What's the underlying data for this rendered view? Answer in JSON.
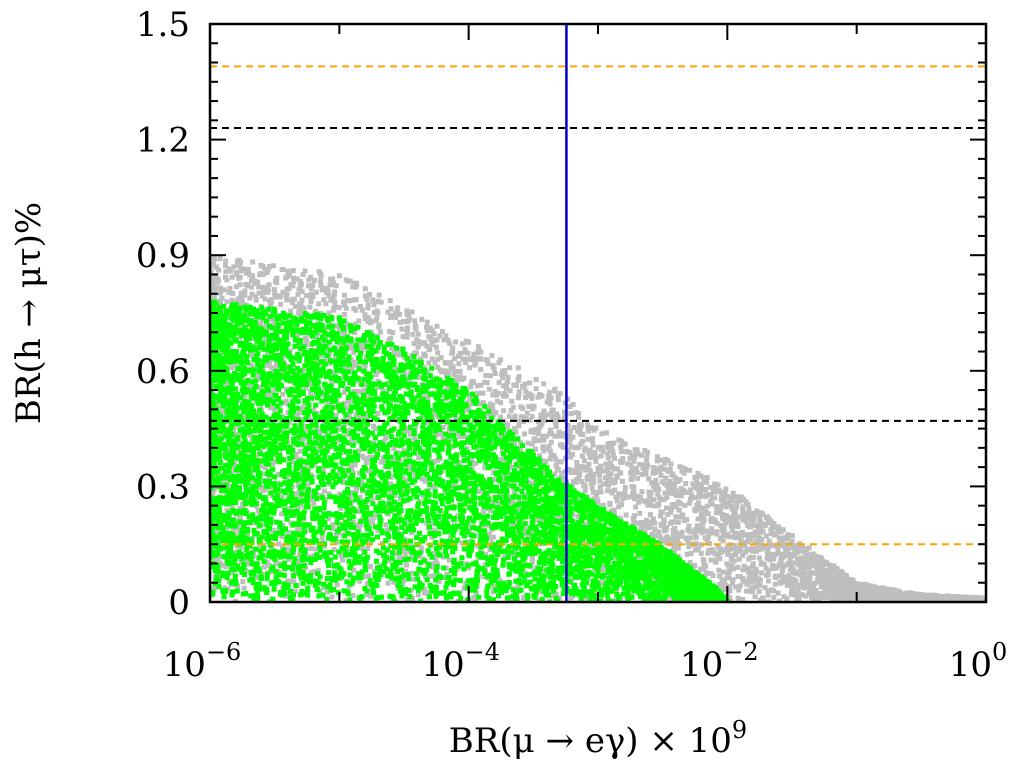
{
  "chart_data": {
    "type": "scatter",
    "xlabel": "BR(μ → eγ) × 10",
    "xlabel_exp": "9",
    "ylabel": "BR(h → μτ)%",
    "x_scale": "log",
    "xlim": [
      1e-06,
      1
    ],
    "ylim": [
      0,
      1.5
    ],
    "x_ticks": [
      {
        "value": 1e-06,
        "base": "10",
        "exp": "−6"
      },
      {
        "value": 0.0001,
        "base": "10",
        "exp": "−4"
      },
      {
        "value": 0.01,
        "base": "10",
        "exp": "−2"
      },
      {
        "value": 1,
        "base": "10",
        "exp": "0"
      }
    ],
    "y_ticks": [
      {
        "value": 0,
        "label": "0"
      },
      {
        "value": 0.3,
        "label": "0.3"
      },
      {
        "value": 0.6,
        "label": "0.6"
      },
      {
        "value": 0.9,
        "label": "0.9"
      },
      {
        "value": 1.2,
        "label": "1.2"
      },
      {
        "value": 1.5,
        "label": "1.5"
      }
    ],
    "grid": false,
    "series": [
      {
        "color": "#bebebe",
        "envelope": [
          [
            1e-06,
            0.9
          ],
          [
            1e-05,
            0.85
          ],
          [
            0.0001,
            0.68
          ],
          [
            0.0005,
            0.55
          ],
          [
            0.001,
            0.45
          ],
          [
            0.01,
            0.3
          ],
          [
            0.03,
            0.18
          ],
          [
            0.1,
            0.05
          ],
          [
            0.3,
            0.02
          ],
          [
            1,
            0.01
          ]
        ],
        "n_points": 5500
      },
      {
        "color": "#00ff00",
        "envelope": [
          [
            1e-06,
            0.78
          ],
          [
            1e-05,
            0.74
          ],
          [
            3e-05,
            0.66
          ],
          [
            0.0001,
            0.55
          ],
          [
            0.0002,
            0.45
          ],
          [
            0.0005,
            0.32
          ],
          [
            0.001,
            0.25
          ],
          [
            0.003,
            0.15
          ],
          [
            0.008,
            0.04
          ],
          [
            0.01,
            0.0
          ]
        ],
        "n_points": 6000
      }
    ],
    "reference_lines": [
      {
        "orientation": "horizontal",
        "y": 1.39,
        "color": "#ffa500",
        "style": "dashed"
      },
      {
        "orientation": "horizontal",
        "y": 1.23,
        "color": "#000000",
        "style": "dashed"
      },
      {
        "orientation": "horizontal",
        "y": 0.47,
        "color": "#000000",
        "style": "dashed"
      },
      {
        "orientation": "horizontal",
        "y": 0.15,
        "color": "#ffa500",
        "style": "dashed"
      },
      {
        "orientation": "vertical",
        "x": 0.00057,
        "color": "#0000cd",
        "style": "solid"
      }
    ]
  }
}
